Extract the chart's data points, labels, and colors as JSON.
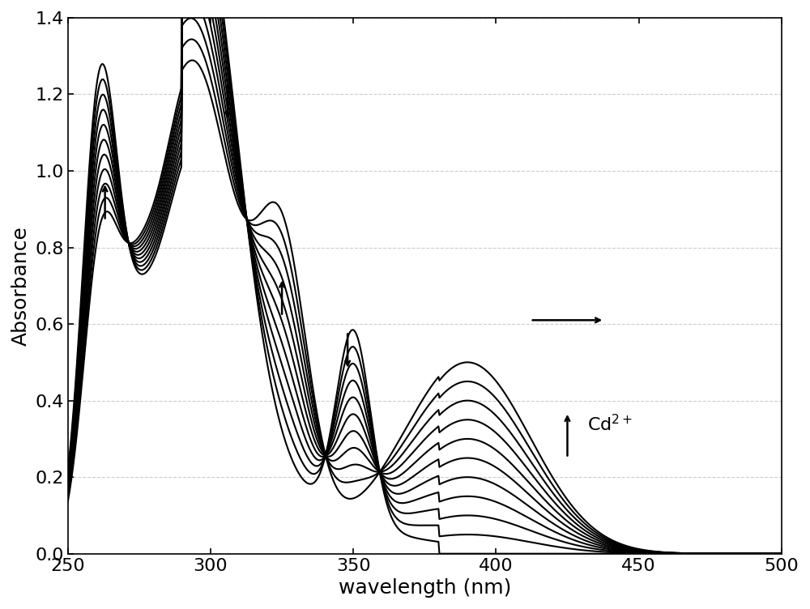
{
  "xlim": [
    250,
    500
  ],
  "ylim": [
    0.0,
    1.4
  ],
  "xlabel": "wavelength (nm)",
  "ylabel": "Absorbance",
  "xlabel_fontsize": 18,
  "ylabel_fontsize": 18,
  "tick_fontsize": 16,
  "n_curves": 11,
  "line_color": "black",
  "line_width": 1.5,
  "annotation_fontsize": 16,
  "grid_color": "#cccccc",
  "xticks": [
    250,
    300,
    350,
    400,
    450,
    500
  ],
  "yticks": [
    0.0,
    0.2,
    0.4,
    0.6,
    0.8,
    1.0,
    1.2,
    1.4
  ]
}
